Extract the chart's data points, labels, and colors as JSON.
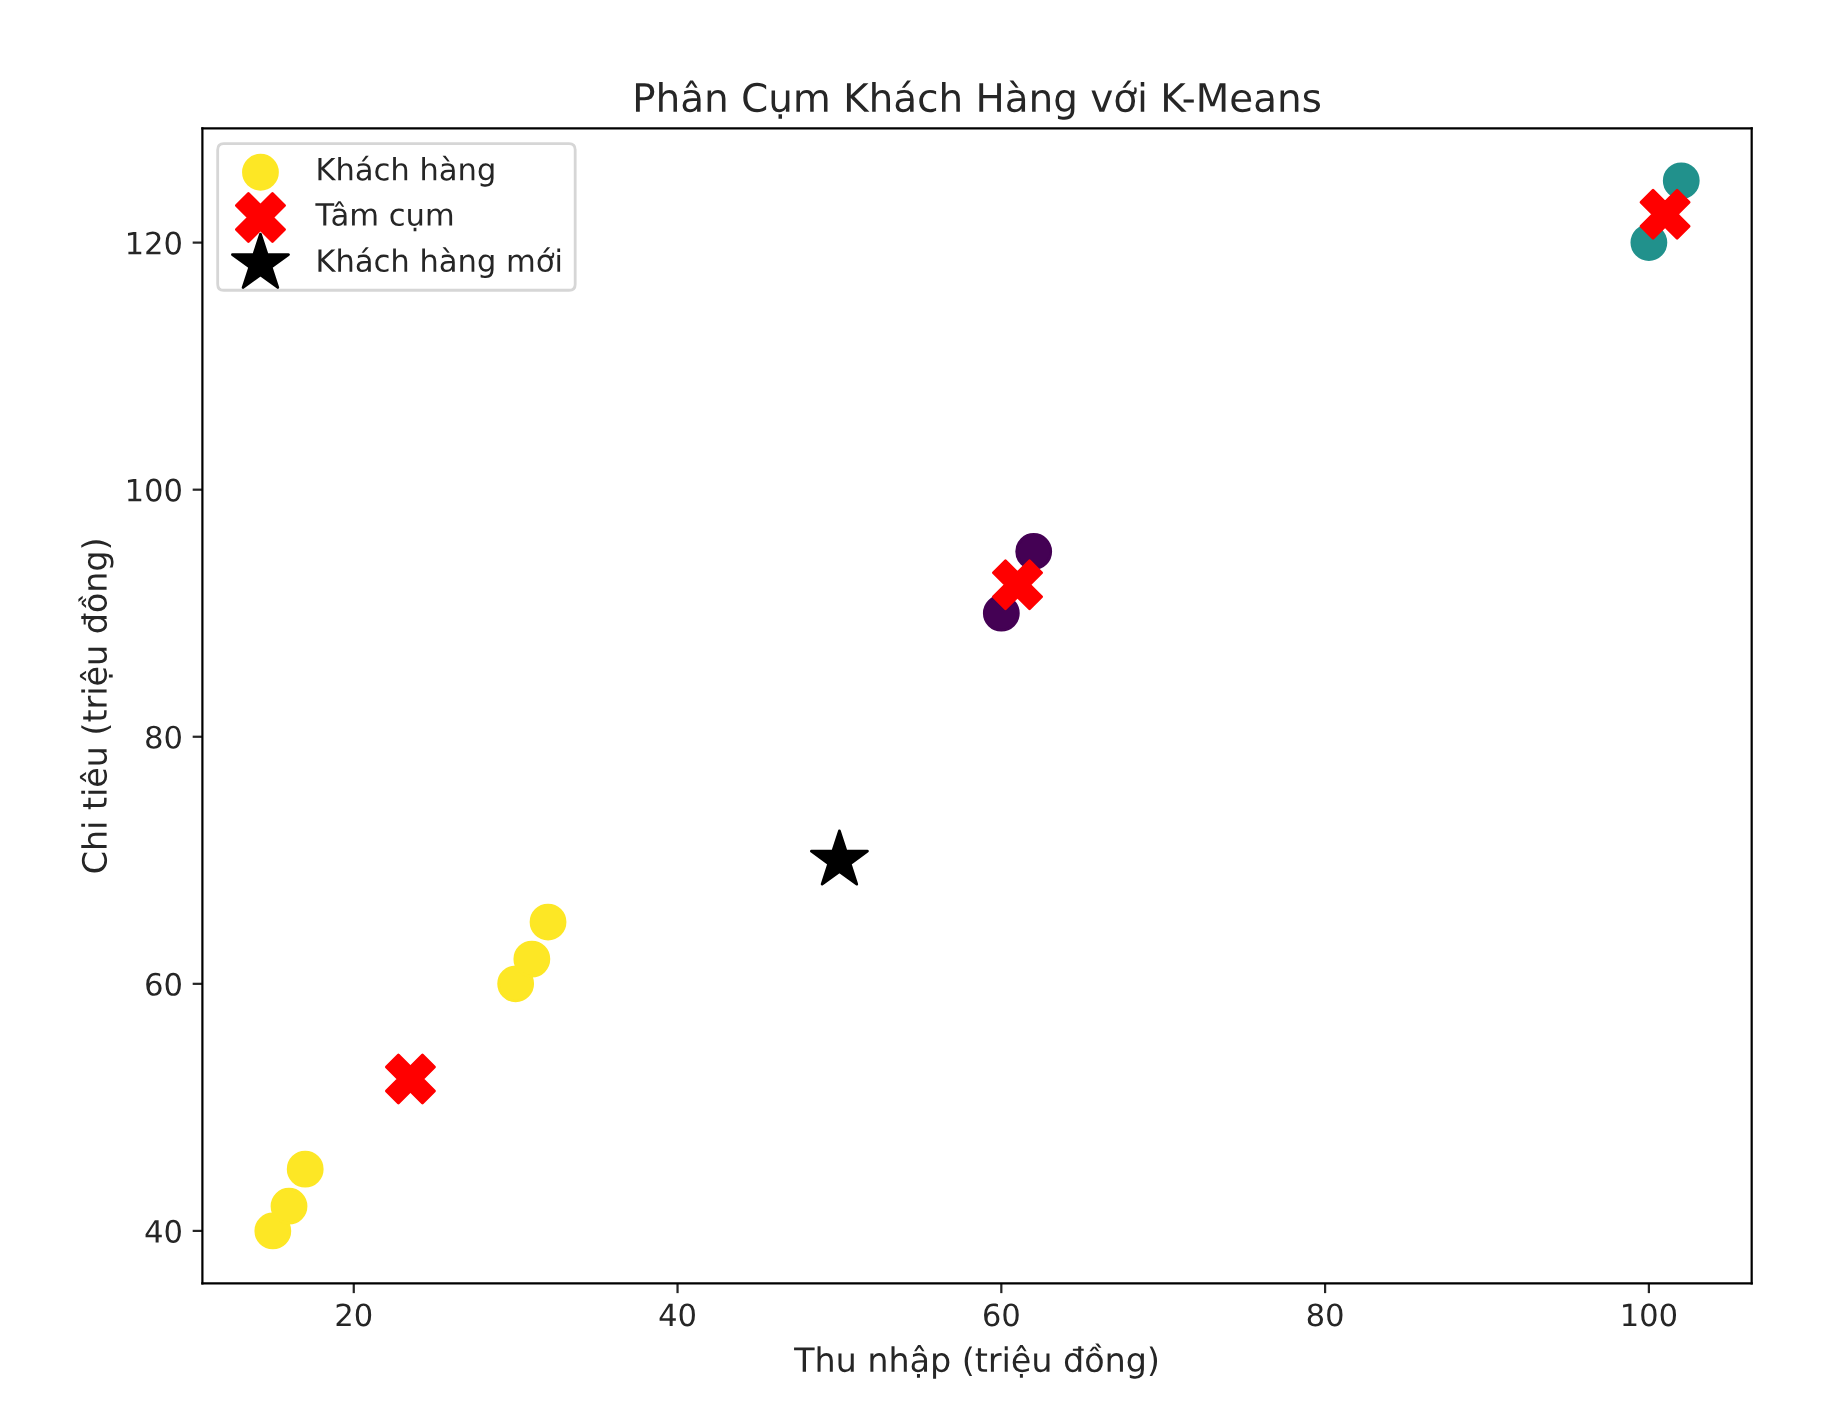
{
  "chart_data": {
    "type": "scatter",
    "title": "Phân Cụm Khách Hàng với K-Means",
    "xlabel": "Thu nhập (triệu đồng)",
    "ylabel": "Chi tiêu (triệu đồng)",
    "series": [
      {
        "name": "Khách hàng",
        "marker": "circle",
        "x": [
          15,
          16,
          17,
          30,
          31,
          32,
          60,
          62,
          100,
          102
        ],
        "values": [
          40,
          42,
          45,
          60,
          62,
          65,
          90,
          95,
          120,
          125
        ],
        "colors": [
          "#fde725",
          "#fde725",
          "#fde725",
          "#fde725",
          "#fde725",
          "#fde725",
          "#440154",
          "#440154",
          "#21918c",
          "#21918c"
        ]
      },
      {
        "name": "Tâm cụm",
        "marker": "cross",
        "color": "#ff0000",
        "x": [
          23.5,
          61,
          101
        ],
        "values": [
          52.3,
          92.3,
          122.3
        ]
      },
      {
        "name": "Khách hàng mới",
        "marker": "star",
        "color": "#000000",
        "x": [
          50
        ],
        "values": [
          70
        ]
      }
    ],
    "xlim": [
      10.65,
      106.35
    ],
    "ylim": [
      35.75,
      129.25
    ],
    "xticks": [
      20,
      40,
      60,
      80,
      100
    ],
    "yticks": [
      40,
      60,
      80,
      100,
      120
    ],
    "grid": false,
    "legend": "top left"
  }
}
